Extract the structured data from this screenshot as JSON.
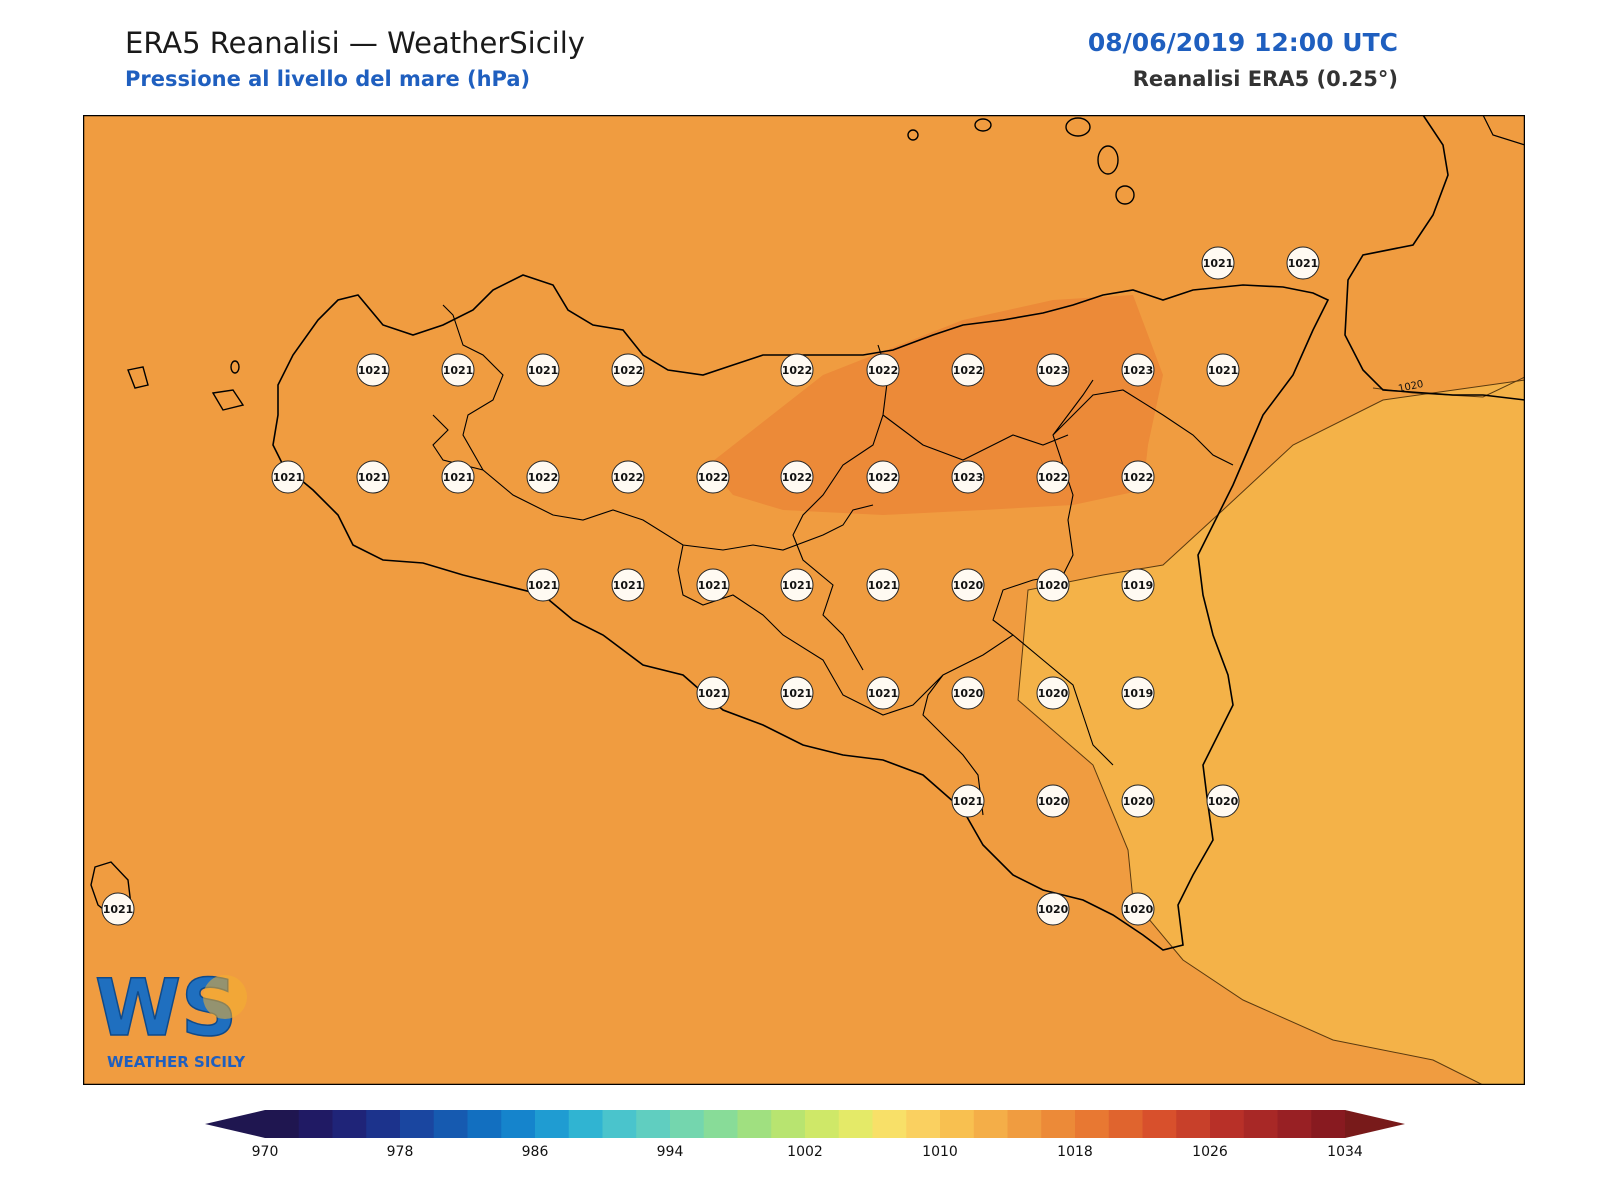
{
  "header": {
    "title": "ERA5 Reanalisi — WeatherSicily",
    "subtitle": "Pressione al livello del mare (hPa)",
    "datetime": "08/06/2019 12:00 UTC",
    "source": "Reanalisi ERA5 (0.25°)"
  },
  "map": {
    "base_color": "#F09C40",
    "field_high_color": "#EC8A38",
    "field_low_color": "#F4B248",
    "coast_color": "#000000",
    "contour_label": "1020",
    "stations": [
      {
        "label": "1021"
      },
      {
        "label": "1021"
      },
      {
        "label": "1021"
      },
      {
        "label": "1021"
      },
      {
        "label": "1021"
      },
      {
        "label": "1022"
      },
      {
        "label": "1022"
      },
      {
        "label": "1022"
      },
      {
        "label": "1022"
      },
      {
        "label": "1023"
      },
      {
        "label": "1023"
      },
      {
        "label": "1021"
      },
      {
        "label": "1021"
      },
      {
        "label": "1021"
      },
      {
        "label": "1021"
      },
      {
        "label": "1022"
      },
      {
        "label": "1022"
      },
      {
        "label": "1022"
      },
      {
        "label": "1022"
      },
      {
        "label": "1022"
      },
      {
        "label": "1023"
      },
      {
        "label": "1022"
      },
      {
        "label": "1022"
      },
      {
        "label": "1021"
      },
      {
        "label": "1021"
      },
      {
        "label": "1021"
      },
      {
        "label": "1021"
      },
      {
        "label": "1021"
      },
      {
        "label": "1020"
      },
      {
        "label": "1020"
      },
      {
        "label": "1019"
      },
      {
        "label": "1021"
      },
      {
        "label": "1021"
      },
      {
        "label": "1021"
      },
      {
        "label": "1020"
      },
      {
        "label": "1020"
      },
      {
        "label": "1019"
      },
      {
        "label": "1021"
      },
      {
        "label": "1020"
      },
      {
        "label": "1020"
      },
      {
        "label": "1020"
      },
      {
        "label": "1020"
      },
      {
        "label": "1020"
      },
      {
        "label": "1021"
      }
    ]
  },
  "logo": {
    "text": "WS",
    "caption": "WEATHER SICILY"
  },
  "colorbar": {
    "min": 970,
    "max": 1034,
    "step": 2,
    "tick_labels": [
      "970",
      "978",
      "986",
      "994",
      "1002",
      "1010",
      "1018",
      "1026",
      "1034"
    ],
    "colors": [
      "#1f1650",
      "#201a64",
      "#1f2478",
      "#1c338c",
      "#1a46a0",
      "#165ab0",
      "#126fc0",
      "#1584cc",
      "#1f9cd2",
      "#30b4d2",
      "#4ac4cc",
      "#60cec0",
      "#74d6ae",
      "#88dc98",
      "#a0e080",
      "#b8e470",
      "#cfe868",
      "#e4ea68",
      "#f8e068",
      "#fad060",
      "#f8c050",
      "#f4ae48",
      "#f09c40",
      "#ec8a38",
      "#e87832",
      "#e0642e",
      "#d8502c",
      "#c8402a",
      "#b83028",
      "#a82826",
      "#982024",
      "#881a20",
      "#781a1a"
    ]
  }
}
